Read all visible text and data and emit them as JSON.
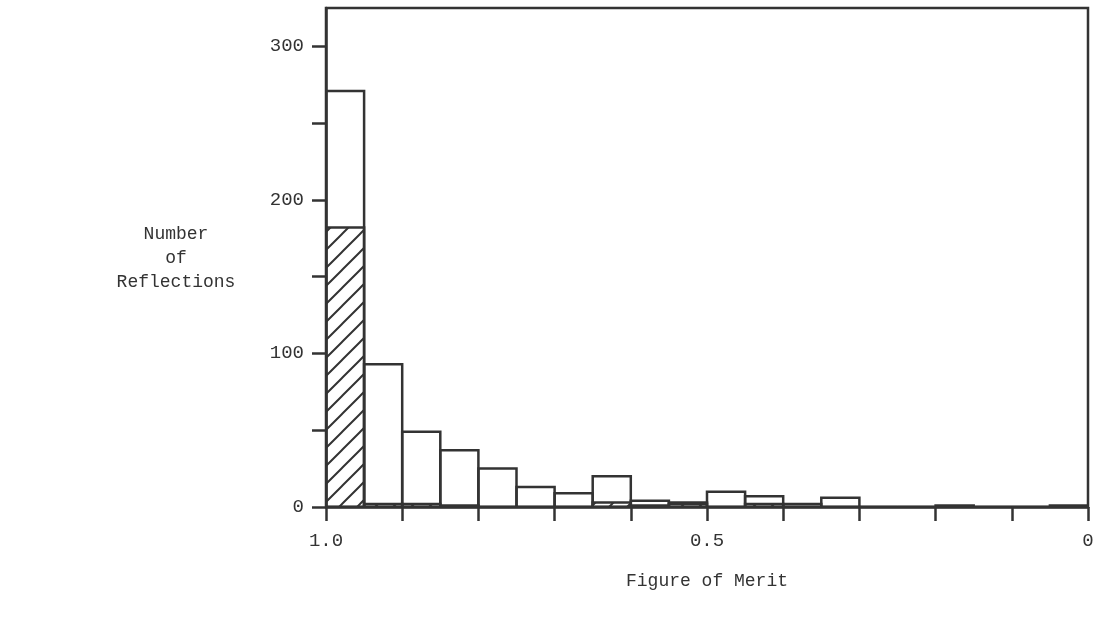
{
  "chart_data": {
    "type": "histogram",
    "xlabel": "Figure of Merit",
    "ylabel": "Number of Reflections",
    "bins": [
      1.0,
      0.95,
      0.9,
      0.85,
      0.8,
      0.75,
      0.7,
      0.65,
      0.6,
      0.55,
      0.5,
      0.45,
      0.4,
      0.35,
      0.3,
      0.25,
      0.2,
      0.15,
      0.1,
      0.05,
      0
    ],
    "series": [
      {
        "color": "#333333",
        "values": [
          271,
          93,
          49,
          37,
          25,
          13,
          9,
          20,
          4,
          3,
          10,
          7,
          2,
          6,
          0,
          0,
          1,
          0,
          0,
          1
        ]
      },
      {
        "color": "#333333",
        "values": [
          182,
          2,
          2,
          1,
          0,
          0,
          0,
          3,
          1,
          2,
          0,
          2,
          0,
          0,
          0,
          0,
          0,
          0,
          0,
          0
        ]
      }
    ],
    "xlim": [
      1.0,
      0
    ],
    "ylim": [
      0,
      325
    ],
    "xticks": [
      {
        "value": 1.0,
        "label": "1.0"
      },
      {
        "value": 0.9,
        "label": null
      },
      {
        "value": 0.8,
        "label": null
      },
      {
        "value": 0.7,
        "label": null
      },
      {
        "value": 0.6,
        "label": null
      },
      {
        "value": 0.5,
        "label": "0.5"
      },
      {
        "value": 0.4,
        "label": null
      },
      {
        "value": 0.3,
        "label": null
      },
      {
        "value": 0.2,
        "label": null
      },
      {
        "value": 0.1,
        "label": null
      },
      {
        "value": 0,
        "label": "0"
      }
    ],
    "yticks": [
      0,
      {
        "value": 50,
        "label": null
      },
      100,
      {
        "value": 150,
        "label": null
      },
      200,
      {
        "value": 250,
        "label": null
      },
      300
    ],
    "grid": false
  }
}
